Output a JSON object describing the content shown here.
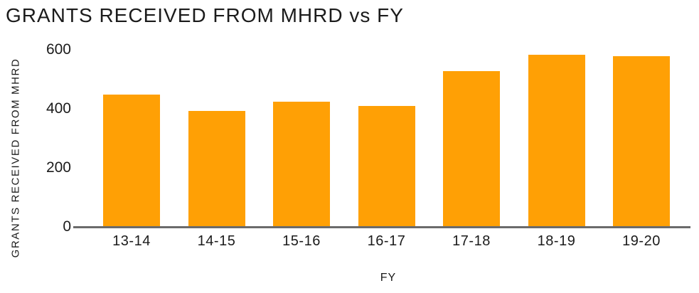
{
  "chart_data": {
    "type": "bar",
    "title": "GRANTS RECEIVED FROM MHRD vs FY",
    "xlabel": "FY",
    "ylabel": "GRANTS RECEIVED FROM MHRD",
    "categories": [
      "13-14",
      "14-15",
      "15-16",
      "16-17",
      "17-18",
      "18-19",
      "19-20"
    ],
    "values": [
      447,
      392,
      425,
      409,
      528,
      584,
      578
    ],
    "yticks": [
      0,
      200,
      400,
      600
    ],
    "ylim": [
      0,
      600
    ],
    "grid": false,
    "legend": false,
    "bar_color": "#FFA005",
    "axis_color": "#6B6B6B",
    "text_color": "#1B1B1B",
    "background": "#FFFFFF"
  }
}
